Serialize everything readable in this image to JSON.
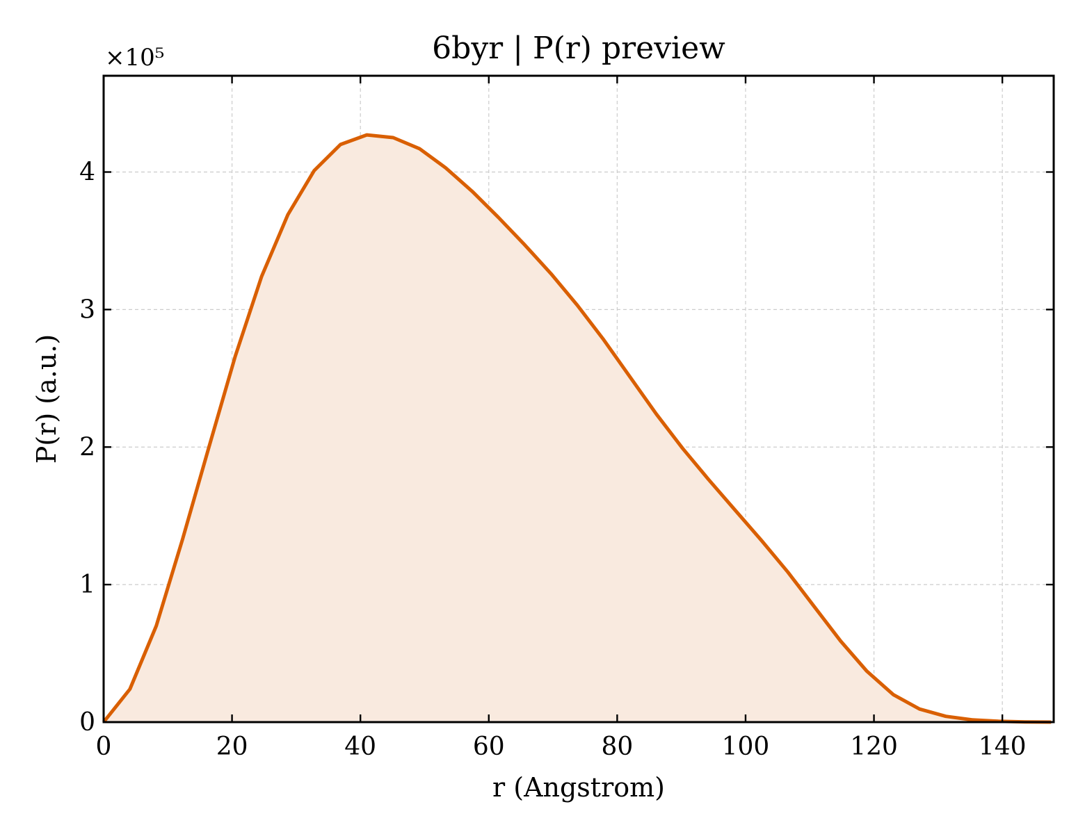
{
  "chart_data": {
    "type": "area",
    "title": "6byr | P(r) preview",
    "xlabel": "r (Angstrom)",
    "ylabel": "P(r) (a.u.)",
    "y_offset_text": "×10⁵",
    "y_scale_factor": 100000,
    "xlim": [
      0,
      148
    ],
    "ylim": [
      0,
      470000
    ],
    "xticks": [
      0,
      20,
      40,
      60,
      80,
      100,
      120,
      140
    ],
    "yticks": [
      0,
      100000,
      200000,
      300000,
      400000
    ],
    "ytick_labels": [
      "0",
      "1",
      "2",
      "3",
      "4"
    ],
    "grid": true,
    "line_color": "#d95f02",
    "fill_color": "#f9eadf",
    "series": [
      {
        "x": [
          0,
          4.1,
          8.2,
          12.3,
          16.4,
          20.5,
          24.6,
          28.7,
          32.8,
          36.9,
          41.0,
          45.1,
          49.2,
          53.3,
          57.4,
          61.5,
          65.6,
          69.7,
          73.8,
          77.9,
          82.0,
          86.1,
          90.2,
          94.3,
          98.4,
          102.5,
          106.6,
          110.7,
          114.8,
          118.9,
          123.0,
          127.1,
          131.2,
          135.3,
          139.4,
          143.5,
          147.6
        ],
        "y": [
          0,
          24000,
          70000,
          133000,
          200000,
          266000,
          324000,
          369000,
          401000,
          420000,
          427000,
          425000,
          417000,
          403000,
          386000,
          367000,
          347000,
          326000,
          303000,
          278000,
          251000,
          224000,
          199000,
          176000,
          154000,
          132000,
          109000,
          84000,
          59000,
          37000,
          20000,
          9500,
          4200,
          1600,
          600,
          150,
          0
        ]
      }
    ]
  }
}
